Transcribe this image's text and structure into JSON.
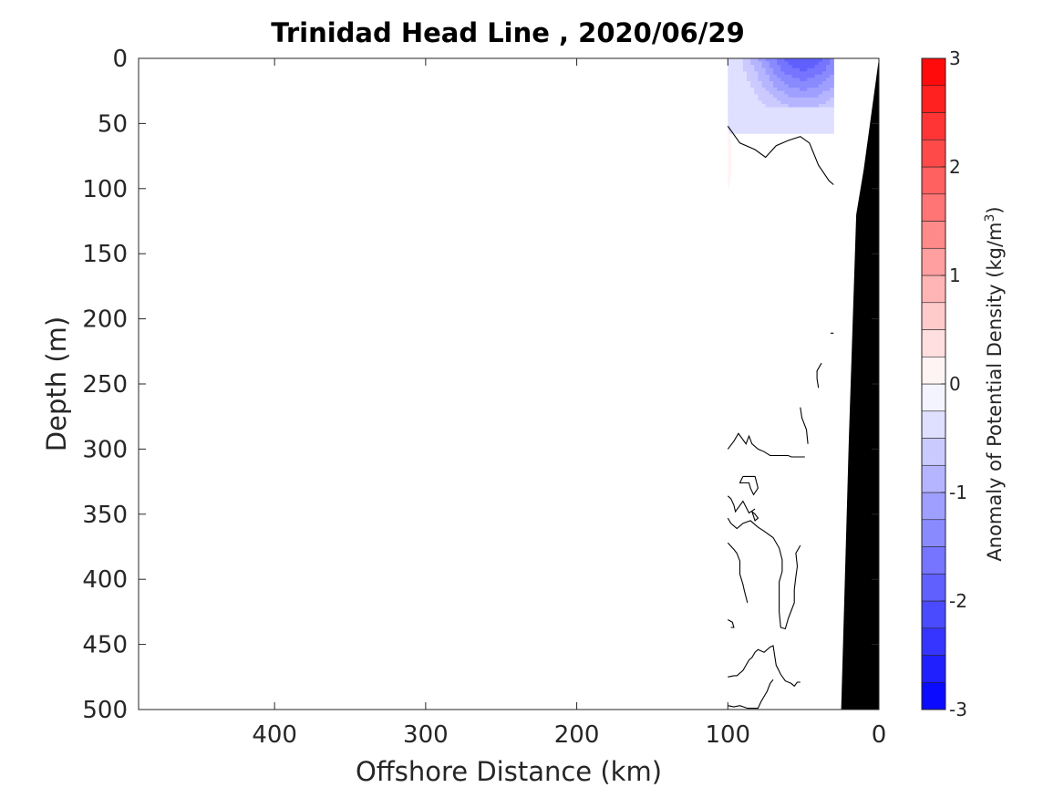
{
  "chart_data": {
    "type": "contour",
    "title": "Trinidad Head Line , 2020/06/29",
    "xlabel": "Offshore Distance (km)",
    "ylabel": "Depth (m)",
    "xlim": [
      490,
      0
    ],
    "ylim": [
      0,
      500
    ],
    "y_reversed": true,
    "x_reversed": true,
    "x_ticks": [
      400,
      300,
      200,
      100,
      0
    ],
    "y_ticks": [
      0,
      50,
      100,
      150,
      200,
      250,
      300,
      350,
      400,
      450,
      500
    ],
    "colorbar": {
      "label": "Anomaly of Potential Density (kg/m",
      "label_superscript": "3",
      "label_suffix": ")",
      "range": [
        -3,
        3
      ],
      "ticks": [
        3,
        2,
        1,
        0,
        -1,
        -2,
        -3
      ],
      "levels": [
        -3,
        -2.75,
        -2.5,
        -2.25,
        -2,
        -1.75,
        -1.5,
        -1.25,
        -1,
        -0.75,
        -0.5,
        -0.25,
        0,
        0.25,
        0.5,
        0.75,
        1,
        1.25,
        1.5,
        1.75,
        2,
        2.25,
        2.5,
        2.75,
        3
      ],
      "colormap": "blue-white-red",
      "low_color": "#0000ff",
      "high_color": "#ff0000"
    },
    "data_extent_km": [
      100,
      0
    ],
    "negative_anomaly_region": {
      "distance_range_km": [
        100,
        30
      ],
      "depth_range_m": [
        0,
        57
      ],
      "min_value_kg_m3": -2.0,
      "min_value_location": {
        "distance_km": 50,
        "depth_m": 2
      }
    },
    "positive_anomaly_region": {
      "distance_km": 100,
      "depth_range_m": [
        55,
        100
      ],
      "max_value_kg_m3": 0.25
    },
    "zero_contours": [
      [
        [
          100,
          52
        ],
        [
          92,
          65
        ],
        [
          82,
          70
        ],
        [
          75,
          76
        ],
        [
          68,
          67
        ],
        [
          60,
          63
        ],
        [
          52,
          60
        ],
        [
          46,
          65
        ],
        [
          40,
          82
        ],
        [
          33,
          94
        ],
        [
          30,
          97
        ]
      ],
      [
        [
          100,
          300
        ],
        [
          96,
          294
        ],
        [
          93,
          288
        ],
        [
          88,
          296
        ],
        [
          86,
          290
        ],
        [
          84,
          296
        ],
        [
          80,
          300
        ],
        [
          76,
          302
        ],
        [
          72,
          305
        ],
        [
          66,
          305
        ],
        [
          60,
          305
        ],
        [
          58,
          306
        ],
        [
          50,
          306
        ],
        [
          49,
          306
        ]
      ],
      [
        [
          47,
          296
        ],
        [
          48,
          285
        ],
        [
          51,
          276
        ],
        [
          52,
          268
        ]
      ],
      [
        [
          40,
          253
        ],
        [
          41,
          246
        ],
        [
          41,
          240
        ],
        [
          38,
          234
        ]
      ],
      [
        [
          100,
          336
        ],
        [
          98,
          338
        ],
        [
          96,
          343
        ],
        [
          95,
          348
        ],
        [
          90,
          340
        ],
        [
          86,
          349
        ],
        [
          82,
          346
        ]
      ],
      [
        [
          90,
          321
        ],
        [
          92,
          326
        ],
        [
          86,
          326
        ],
        [
          85,
          330
        ],
        [
          83,
          335
        ],
        [
          80,
          330
        ],
        [
          82,
          321
        ],
        [
          90,
          321
        ]
      ],
      [
        [
          100,
          353
        ],
        [
          98,
          357
        ],
        [
          94,
          361
        ],
        [
          90,
          357
        ],
        [
          85,
          355
        ],
        [
          80,
          360
        ],
        [
          76,
          363
        ],
        [
          70,
          368
        ],
        [
          66,
          376
        ],
        [
          64,
          385
        ],
        [
          64,
          394
        ],
        [
          66,
          402
        ],
        [
          66,
          414
        ],
        [
          66,
          425
        ],
        [
          65,
          437
        ],
        [
          62,
          438
        ],
        [
          60,
          430
        ],
        [
          58,
          424
        ],
        [
          56,
          418
        ],
        [
          56,
          408
        ],
        [
          55,
          398
        ],
        [
          54,
          390
        ],
        [
          55,
          380
        ],
        [
          52,
          374
        ]
      ],
      [
        [
          100,
          372
        ],
        [
          96,
          377
        ],
        [
          94,
          380
        ],
        [
          92,
          386
        ],
        [
          92,
          396
        ],
        [
          90,
          404
        ],
        [
          89,
          409
        ],
        [
          87,
          418
        ]
      ],
      [
        [
          100,
          431
        ],
        [
          97,
          433
        ],
        [
          96,
          437
        ],
        [
          98,
          437
        ]
      ],
      [
        [
          100,
          475
        ],
        [
          96,
          474
        ],
        [
          94,
          474
        ],
        [
          90,
          470
        ],
        [
          86,
          462
        ],
        [
          84,
          460
        ],
        [
          82,
          456
        ],
        [
          80,
          454
        ],
        [
          76,
          456
        ],
        [
          72,
          452
        ],
        [
          70,
          451
        ],
        [
          68,
          466
        ],
        [
          65,
          473
        ],
        [
          62,
          478
        ],
        [
          58,
          480
        ],
        [
          56,
          482
        ],
        [
          54,
          479
        ],
        [
          52,
          479
        ]
      ],
      [
        [
          100,
          497
        ],
        [
          96,
          498
        ],
        [
          92,
          497
        ],
        [
          87,
          499
        ],
        [
          80,
          499
        ],
        [
          78,
          494
        ],
        [
          74,
          486
        ],
        [
          72,
          480
        ],
        [
          70,
          477
        ]
      ],
      [
        [
          32,
          211
        ],
        [
          30,
          211
        ]
      ],
      [
        [
          84,
          348
        ],
        [
          82,
          350
        ],
        [
          80,
          353
        ],
        [
          82,
          355
        ],
        [
          84,
          348
        ]
      ]
    ],
    "bathymetry_km_m": [
      [
        0,
        0
      ],
      [
        10,
        85
      ],
      [
        15,
        120
      ],
      [
        20,
        295
      ],
      [
        25,
        500
      ]
    ],
    "mask_color": "#000000"
  }
}
